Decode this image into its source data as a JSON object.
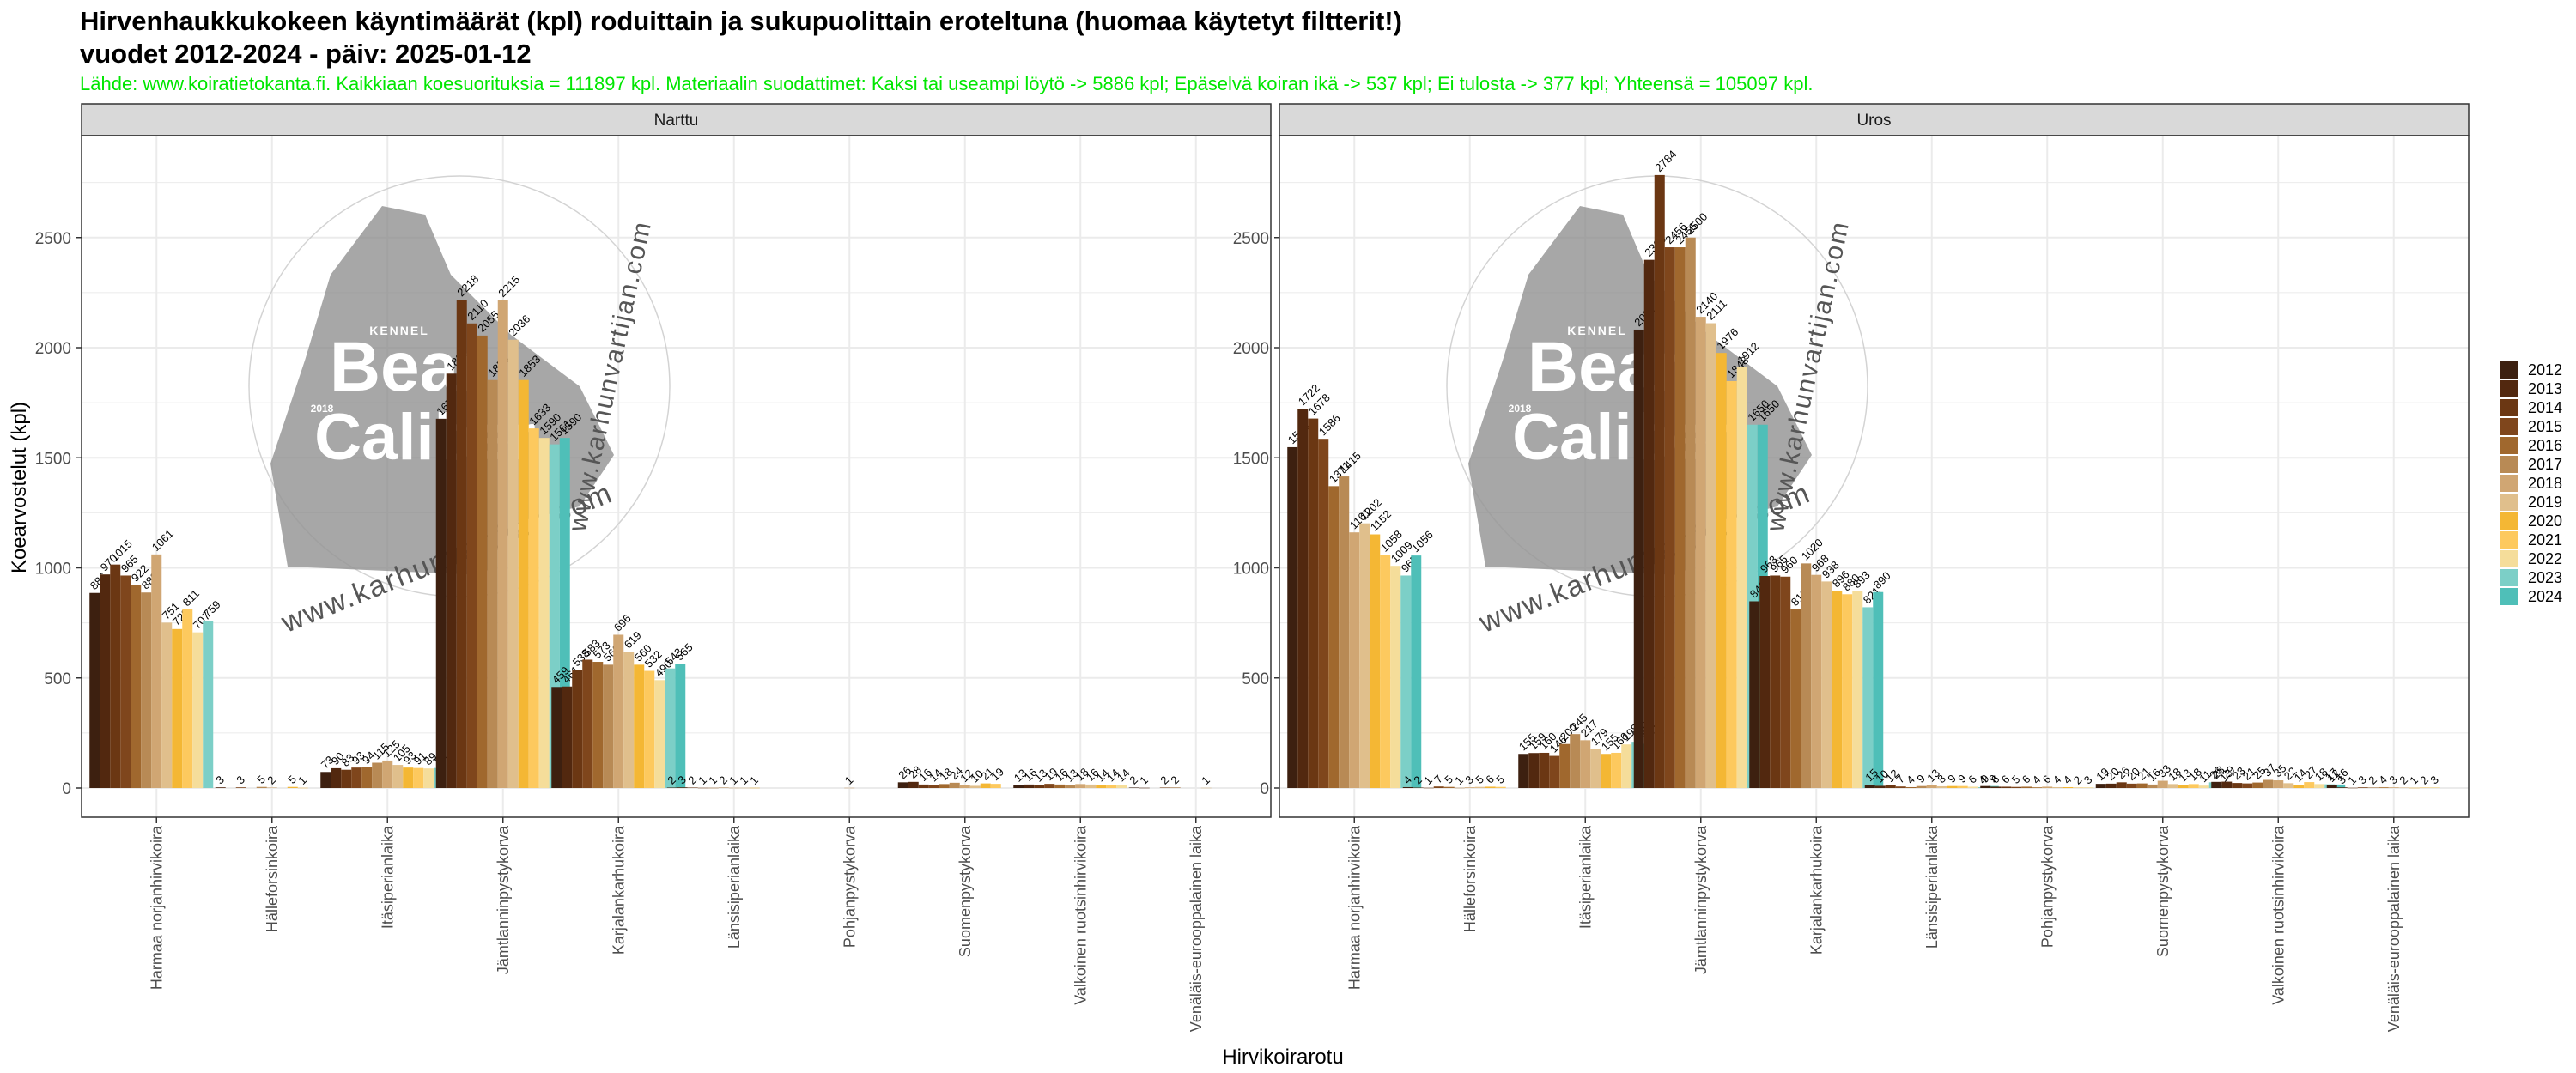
{
  "header": {
    "title_line1": "Hirvenhaukkukokeen käyntimäärät (kpl) roduittain ja sukupuolittain eroteltuna (huomaa käytetyt filtterit!)",
    "title_line2": "vuodet 2012-2024 - päiv: 2025-01-12",
    "caption": "Lähde: www.koiratietokanta.fi. Kaikkiaan koesuorituksia = 111897 kpl. Materiaalin suodattimet: Kaksi tai useampi löytö -> 5886 kpl; Epäselvä koiran ikä -> 537 kpl; Ei tulosta -> 377 kpl; Yhteensä = 105097 kpl."
  },
  "watermark": {
    "kennel": "KENNEL",
    "word1": "Bear",
    "year": "2018",
    "word2": "Caliber",
    "url": "www.karhunvartijan.com"
  },
  "colors": {
    "panel_strip": "#d9d9d9",
    "grid": "#ebebeb",
    "caption": "#00e600",
    "years": [
      "#3d2010",
      "#52280f",
      "#6b3713",
      "#7f461c",
      "#a0682e",
      "#b88a55",
      "#d0a673",
      "#e0bf8c",
      "#f4b734",
      "#fdc95e",
      "#f5dd9a",
      "#7ccfc7",
      "#4fbfb8"
    ]
  },
  "chart_data": {
    "type": "bar",
    "xlabel": "Hirvikoirarotu",
    "ylabel": "Koearvostelut (kpl)",
    "ylim": [
      0,
      2900
    ],
    "yticks": [
      0,
      500,
      1000,
      1500,
      2000,
      2500
    ],
    "grid": true,
    "legend_position": "right",
    "categories": [
      "Harmaa norjanhirvikoira",
      "Hällefors­inkoira",
      "Itäsiperianlaika",
      "Jämtlanninpystykorva",
      "Karjalankarhukoira",
      "Länsisiperianlaika",
      "Pohjanpystykorva",
      "Suomenpystykorva",
      "Valkoinen ruotsinhirvikoira",
      "Venäläis-eurooppalainen laika"
    ],
    "series_names": [
      "2012",
      "2013",
      "2014",
      "2015",
      "2016",
      "2017",
      "2018",
      "2019",
      "2020",
      "2021",
      "2022",
      "2023",
      "2024"
    ],
    "panels": [
      {
        "name": "Narttu",
        "values": [
          [
            886,
            970,
            1015,
            965,
            922,
            888,
            1061,
            751,
            722,
            811,
            707,
            759,
            null
          ],
          [
            null,
            3,
            null,
            3,
            null,
            5,
            2,
            null,
            5,
            1,
            null,
            null,
            null
          ],
          [
            73,
            90,
            83,
            93,
            94,
            115,
            125,
            105,
            93,
            91,
            89,
            91,
            null
          ],
          [
            1677,
            1882,
            2218,
            2110,
            2055,
            1853,
            2215,
            2036,
            1853,
            1633,
            1590,
            1561,
            1590
          ],
          [
            459,
            461,
            538,
            583,
            573,
            560,
            696,
            619,
            560,
            532,
            490,
            543,
            565
          ],
          [
            2,
            3,
            2,
            1,
            1,
            2,
            1,
            1,
            1,
            null,
            null,
            null,
            null
          ],
          [
            null,
            null,
            null,
            null,
            null,
            null,
            1,
            null,
            null,
            null,
            null,
            null,
            null
          ],
          [
            26,
            28,
            16,
            14,
            18,
            24,
            12,
            10,
            21,
            19,
            null,
            null,
            null
          ],
          [
            13,
            16,
            13,
            19,
            16,
            13,
            18,
            16,
            14,
            14,
            14,
            null,
            null
          ],
          [
            2,
            1,
            null,
            2,
            2,
            null,
            null,
            1,
            null,
            null,
            null,
            null,
            null
          ]
        ]
      },
      {
        "name": "Uros",
        "values": [
          [
            1548,
            1722,
            1678,
            1586,
            1371,
            1415,
            1161,
            1202,
            1152,
            1058,
            1009,
            965,
            1056
          ],
          [
            4,
            2,
            1,
            7,
            5,
            1,
            3,
            5,
            6,
            5,
            null,
            null,
            null
          ],
          [
            155,
            159,
            160,
            146,
            200,
            245,
            217,
            179,
            155,
            160,
            198,
            210,
            201
          ],
          [
            2082,
            2399,
            2784,
            2456,
            2456,
            2500,
            2140,
            2111,
            1976,
            1848,
            1912,
            1650,
            1650
          ],
          [
            848,
            963,
            965,
            960,
            812,
            1020,
            968,
            938,
            896,
            880,
            893,
            821,
            890
          ],
          [
            15,
            10,
            12,
            7,
            4,
            9,
            13,
            8,
            9,
            9,
            6,
            4,
            9
          ],
          [
            9,
            6,
            6,
            5,
            6,
            4,
            6,
            4,
            4,
            2,
            3,
            null,
            null
          ],
          [
            19,
            20,
            26,
            20,
            21,
            16,
            33,
            18,
            13,
            18,
            11,
            26,
            13
          ],
          [
            28,
            29,
            23,
            21,
            25,
            37,
            35,
            22,
            14,
            27,
            18,
            17,
            16
          ],
          [
            12,
            3,
            1,
            3,
            2,
            4,
            3,
            2,
            1,
            2,
            3,
            null,
            null
          ]
        ]
      }
    ]
  }
}
